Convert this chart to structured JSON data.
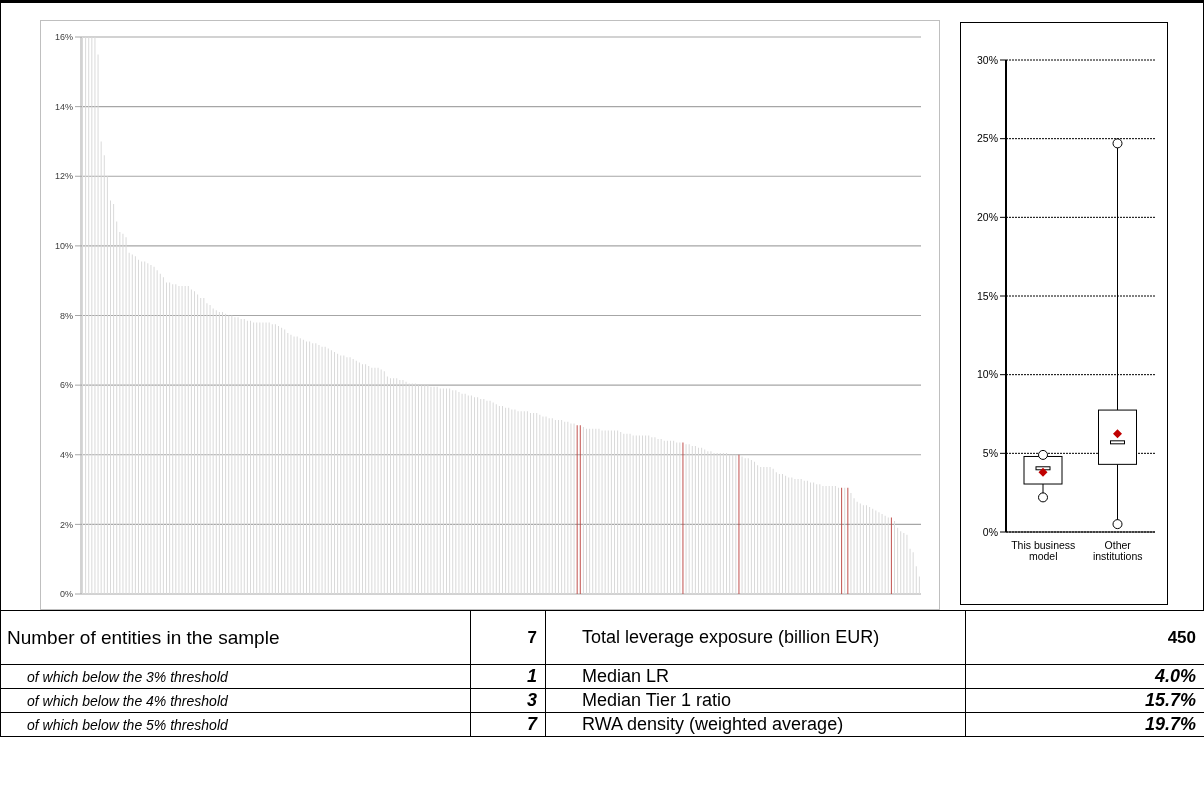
{
  "chart_data": [
    {
      "type": "bar",
      "categories": [
        null,
        null,
        null,
        null,
        null,
        null,
        null,
        null,
        null,
        null,
        null,
        null,
        null,
        null,
        null,
        null,
        null,
        null,
        null,
        null,
        null,
        null,
        null,
        null,
        null,
        null,
        null,
        null,
        null,
        null,
        null,
        null,
        null,
        null,
        null,
        null,
        null,
        null,
        null,
        null,
        null,
        null,
        null,
        null,
        null,
        null,
        null,
        null,
        null,
        null,
        null,
        null,
        null,
        null,
        null,
        null,
        null,
        null,
        null,
        null,
        null,
        null,
        null,
        null,
        null,
        null,
        null,
        null,
        null,
        null,
        null,
        null,
        null,
        null,
        null,
        null,
        null,
        null,
        null,
        null,
        null,
        null,
        null,
        null,
        null,
        null,
        null,
        null,
        null,
        null,
        null,
        null,
        null,
        null,
        null,
        null,
        null,
        null,
        null,
        null,
        null,
        null,
        null,
        null,
        null,
        null,
        null,
        null,
        null,
        null,
        null,
        null,
        null,
        null,
        null,
        null,
        null,
        null,
        null,
        null,
        null,
        null,
        null,
        null,
        null,
        null,
        null,
        null,
        null,
        null,
        null,
        null,
        null,
        null,
        null,
        null,
        null,
        null,
        null,
        null,
        null,
        null,
        null,
        null,
        null,
        null,
        null,
        null,
        null,
        null,
        null,
        null,
        null,
        null,
        null,
        null,
        null,
        null,
        null,
        null,
        null,
        null,
        null,
        null,
        null,
        null,
        null,
        null,
        null,
        null,
        null,
        null,
        null,
        null,
        null,
        null,
        null,
        null,
        null,
        null,
        null,
        null,
        null,
        null,
        null,
        null,
        null,
        null,
        null,
        null,
        null,
        null,
        null,
        null,
        null,
        null,
        null,
        null,
        null,
        null,
        null,
        null,
        null,
        null,
        null,
        null,
        null,
        null,
        null,
        null,
        null,
        null,
        null,
        null,
        null,
        null,
        null,
        null,
        null,
        null,
        null,
        null,
        null,
        null,
        null,
        null,
        null,
        null,
        null,
        null,
        null,
        null,
        null,
        null,
        null,
        null,
        null,
        null,
        null,
        null,
        null,
        null,
        null,
        null,
        null,
        null,
        null,
        null,
        null,
        null,
        null,
        null,
        null,
        null,
        null,
        null,
        null,
        null,
        null,
        null,
        null,
        null,
        null,
        null,
        null,
        null,
        null,
        null,
        null,
        null
      ],
      "values": [
        16,
        16,
        16,
        16,
        16,
        15.5,
        13.0,
        12.6,
        12.0,
        11.3,
        11.2,
        10.7,
        10.4,
        10.35,
        10.25,
        9.8,
        9.75,
        9.7,
        9.6,
        9.55,
        9.55,
        9.5,
        9.45,
        9.4,
        9.3,
        9.2,
        9.1,
        8.95,
        8.95,
        8.9,
        8.9,
        8.85,
        8.85,
        8.85,
        8.85,
        8.75,
        8.7,
        8.6,
        8.5,
        8.5,
        8.35,
        8.3,
        8.2,
        8.15,
        8.1,
        8.1,
        8.05,
        8.0,
        8.0,
        7.95,
        7.95,
        7.9,
        7.9,
        7.85,
        7.85,
        7.8,
        7.8,
        7.8,
        7.8,
        7.8,
        7.8,
        7.75,
        7.75,
        7.7,
        7.65,
        7.6,
        7.5,
        7.45,
        7.4,
        7.4,
        7.35,
        7.3,
        7.25,
        7.25,
        7.2,
        7.2,
        7.15,
        7.1,
        7.1,
        7.05,
        7.0,
        6.95,
        6.9,
        6.85,
        6.85,
        6.8,
        6.8,
        6.75,
        6.7,
        6.65,
        6.6,
        6.6,
        6.55,
        6.5,
        6.5,
        6.5,
        6.45,
        6.4,
        6.25,
        6.2,
        6.2,
        6.2,
        6.15,
        6.15,
        6.1,
        6.05,
        6.05,
        6.05,
        6.0,
        6.0,
        6.0,
        6.0,
        5.95,
        5.95,
        5.95,
        5.9,
        5.9,
        5.9,
        5.9,
        5.85,
        5.85,
        5.8,
        5.75,
        5.75,
        5.7,
        5.7,
        5.65,
        5.65,
        5.6,
        5.6,
        5.55,
        5.55,
        5.5,
        5.45,
        5.4,
        5.4,
        5.35,
        5.35,
        5.3,
        5.3,
        5.25,
        5.25,
        5.25,
        5.25,
        5.2,
        5.2,
        5.2,
        5.15,
        5.1,
        5.1,
        5.05,
        5.05,
        5.0,
        5.0,
        5.0,
        4.95,
        4.95,
        4.9,
        4.9,
        4.85,
        4.85,
        4.8,
        4.75,
        4.75,
        4.75,
        4.75,
        4.75,
        4.7,
        4.7,
        4.7,
        4.7,
        4.7,
        4.7,
        4.65,
        4.6,
        4.6,
        4.6,
        4.55,
        4.55,
        4.55,
        4.55,
        4.55,
        4.55,
        4.5,
        4.5,
        4.45,
        4.45,
        4.4,
        4.4,
        4.4,
        4.4,
        4.35,
        4.35,
        4.35,
        4.3,
        4.3,
        4.25,
        4.25,
        4.2,
        4.2,
        4.15,
        4.1,
        4.1,
        4.05,
        4.05,
        4.05,
        4.05,
        4.05,
        4.0,
        4.0,
        4.0,
        4.0,
        3.95,
        3.9,
        3.9,
        3.85,
        3.8,
        3.7,
        3.65,
        3.65,
        3.65,
        3.65,
        3.6,
        3.5,
        3.45,
        3.45,
        3.4,
        3.35,
        3.35,
        3.3,
        3.3,
        3.3,
        3.25,
        3.25,
        3.2,
        3.2,
        3.15,
        3.15,
        3.1,
        3.1,
        3.1,
        3.1,
        3.1,
        3.05,
        3.05,
        3.05,
        3.05,
        2.9,
        2.75,
        2.65,
        2.6,
        2.55,
        2.55,
        2.5,
        2.45,
        2.4,
        2.35,
        2.3,
        2.25,
        2.2,
        2.2,
        2.1,
        1.9,
        1.8,
        1.75,
        1.7,
        1.3,
        1.2,
        0.8,
        0.5
      ],
      "colors": [
        "#d9d9d9",
        "#d9d9d9",
        "#d9d9d9",
        "#d9d9d9",
        "#d9d9d9",
        "#d9d9d9",
        "#d9d9d9",
        "#d9d9d9",
        "#d9d9d9",
        "#d9d9d9",
        "#d9d9d9",
        "#d9d9d9",
        "#d9d9d9",
        "#d9d9d9",
        "#d9d9d9",
        "#d9d9d9",
        "#d9d9d9",
        "#d9d9d9",
        "#d9d9d9",
        "#d9d9d9",
        "#d9d9d9",
        "#d9d9d9",
        "#d9d9d9",
        "#d9d9d9",
        "#d9d9d9",
        "#d9d9d9",
        "#d9d9d9",
        "#d9d9d9",
        "#d9d9d9",
        "#d9d9d9",
        "#d9d9d9",
        "#d9d9d9",
        "#d9d9d9",
        "#d9d9d9",
        "#d9d9d9",
        "#d9d9d9",
        "#d9d9d9",
        "#d9d9d9",
        "#d9d9d9",
        "#d9d9d9",
        "#d9d9d9",
        "#d9d9d9",
        "#d9d9d9",
        "#d9d9d9",
        "#d9d9d9",
        "#d9d9d9",
        "#d9d9d9",
        "#d9d9d9",
        "#d9d9d9",
        "#d9d9d9",
        "#d9d9d9",
        "#d9d9d9",
        "#d9d9d9",
        "#d9d9d9",
        "#d9d9d9",
        "#d9d9d9",
        "#d9d9d9",
        "#d9d9d9",
        "#d9d9d9",
        "#d9d9d9",
        "#d9d9d9",
        "#d9d9d9",
        "#d9d9d9",
        "#d9d9d9",
        "#d9d9d9",
        "#d9d9d9",
        "#d9d9d9",
        "#d9d9d9",
        "#d9d9d9",
        "#d9d9d9",
        "#d9d9d9",
        "#d9d9d9",
        "#d9d9d9",
        "#d9d9d9",
        "#d9d9d9",
        "#d9d9d9",
        "#d9d9d9",
        "#d9d9d9",
        "#d9d9d9",
        "#d9d9d9",
        "#d9d9d9",
        "#d9d9d9",
        "#d9d9d9",
        "#d9d9d9",
        "#d9d9d9",
        "#d9d9d9",
        "#d9d9d9",
        "#d9d9d9",
        "#d9d9d9",
        "#d9d9d9",
        "#d9d9d9",
        "#d9d9d9",
        "#d9d9d9",
        "#d9d9d9",
        "#d9d9d9",
        "#d9d9d9",
        "#d9d9d9",
        "#d9d9d9",
        "#d9d9d9",
        "#d9d9d9",
        "#d9d9d9",
        "#d9d9d9",
        "#d9d9d9",
        "#d9d9d9",
        "#d9d9d9",
        "#d9d9d9",
        "#d9d9d9",
        "#d9d9d9",
        "#d9d9d9",
        "#d9d9d9",
        "#d9d9d9",
        "#d9d9d9",
        "#d9d9d9",
        "#d9d9d9",
        "#d9d9d9",
        "#d9d9d9",
        "#d9d9d9",
        "#d9d9d9",
        "#d9d9d9",
        "#d9d9d9",
        "#d9d9d9",
        "#d9d9d9",
        "#d9d9d9",
        "#d9d9d9",
        "#d9d9d9",
        "#d9d9d9",
        "#d9d9d9",
        "#d9d9d9",
        "#d9d9d9",
        "#d9d9d9",
        "#d9d9d9",
        "#d9d9d9",
        "#d9d9d9",
        "#d9d9d9",
        "#d9d9d9",
        "#d9d9d9",
        "#d9d9d9",
        "#d9d9d9",
        "#d9d9d9",
        "#d9d9d9",
        "#d9d9d9",
        "#d9d9d9",
        "#d9d9d9",
        "#d9d9d9",
        "#d9d9d9",
        "#d9d9d9",
        "#d9d9d9",
        "#d9d9d9",
        "#d9d9d9",
        "#d9d9d9",
        "#d9d9d9",
        "#d9d9d9",
        "#d9d9d9",
        "#d9d9d9",
        "#d9d9d9",
        "#d9d9d9",
        "#d9d9d9",
        "#d9d9d9",
        "#d9d9d9",
        "#c0504d",
        "#c0504d",
        "#d9d9d9",
        "#d9d9d9",
        "#d9d9d9",
        "#d9d9d9",
        "#d9d9d9",
        "#d9d9d9",
        "#d9d9d9",
        "#d9d9d9",
        "#d9d9d9",
        "#d9d9d9",
        "#d9d9d9",
        "#d9d9d9",
        "#d9d9d9",
        "#d9d9d9",
        "#d9d9d9",
        "#d9d9d9",
        "#d9d9d9",
        "#d9d9d9",
        "#d9d9d9",
        "#d9d9d9",
        "#d9d9d9",
        "#d9d9d9",
        "#d9d9d9",
        "#d9d9d9",
        "#d9d9d9",
        "#d9d9d9",
        "#d9d9d9",
        "#d9d9d9",
        "#d9d9d9",
        "#d9d9d9",
        "#d9d9d9",
        "#d9d9d9",
        "#c0504d",
        "#d9d9d9",
        "#d9d9d9",
        "#d9d9d9",
        "#d9d9d9",
        "#d9d9d9",
        "#d9d9d9",
        "#d9d9d9",
        "#d9d9d9",
        "#d9d9d9",
        "#d9d9d9",
        "#d9d9d9",
        "#d9d9d9",
        "#d9d9d9",
        "#d9d9d9",
        "#d9d9d9",
        "#d9d9d9",
        "#d9d9d9",
        "#c0504d",
        "#d9d9d9",
        "#d9d9d9",
        "#d9d9d9",
        "#d9d9d9",
        "#d9d9d9",
        "#d9d9d9",
        "#d9d9d9",
        "#d9d9d9",
        "#d9d9d9",
        "#d9d9d9",
        "#d9d9d9",
        "#d9d9d9",
        "#d9d9d9",
        "#d9d9d9",
        "#d9d9d9",
        "#d9d9d9",
        "#d9d9d9",
        "#d9d9d9",
        "#d9d9d9",
        "#d9d9d9",
        "#d9d9d9",
        "#d9d9d9",
        "#d9d9d9",
        "#d9d9d9",
        "#d9d9d9",
        "#d9d9d9",
        "#d9d9d9",
        "#d9d9d9",
        "#d9d9d9",
        "#d9d9d9",
        "#d9d9d9",
        "#d9d9d9",
        "#c0504d",
        "#d9d9d9",
        "#c0504d",
        "#d9d9d9",
        "#d9d9d9",
        "#d9d9d9",
        "#d9d9d9",
        "#d9d9d9",
        "#d9d9d9",
        "#d9d9d9",
        "#d9d9d9",
        "#d9d9d9",
        "#d9d9d9",
        "#d9d9d9",
        "#d9d9d9",
        "#d9d9d9",
        "#c0504d",
        "#d9d9d9",
        "#d9d9d9",
        "#d9d9d9",
        "#d9d9d9",
        "#d9d9d9",
        "#d9d9d9",
        "#d9d9d9",
        "#d9d9d9",
        "#d9d9d9"
      ],
      "ylim": [
        0,
        16
      ],
      "yticks": [
        {
          "value": 0,
          "label": "0%"
        },
        {
          "value": 2,
          "label": "2%"
        },
        {
          "value": 4,
          "label": "4%"
        },
        {
          "value": 6,
          "label": "6%"
        },
        {
          "value": 8,
          "label": "8%"
        },
        {
          "value": 10,
          "label": "10%"
        },
        {
          "value": 12,
          "label": "12%"
        },
        {
          "value": 14,
          "label": "14%"
        },
        {
          "value": 16,
          "label": "16%"
        }
      ],
      "grid": "y"
    },
    {
      "type": "box",
      "categories": [
        "This business model",
        "Other institutions"
      ],
      "boxes": [
        {
          "low": 2.2,
          "q1": 3.05,
          "median": 4.05,
          "q3": 4.8,
          "high": 4.9,
          "mean": 3.8,
          "outliers": [
            2.2,
            4.9
          ]
        },
        {
          "low": 0.5,
          "q1": 4.3,
          "median": 5.7,
          "q3": 7.75,
          "high": 24.7,
          "mean": 6.25,
          "outliers": [
            0.5,
            24.7
          ]
        }
      ],
      "ylim": [
        0,
        30
      ],
      "yticks": [
        {
          "value": 0,
          "label": "0%"
        },
        {
          "value": 5,
          "label": "5%"
        },
        {
          "value": 10,
          "label": "10%"
        },
        {
          "value": 15,
          "label": "15%"
        },
        {
          "value": 20,
          "label": "20%"
        },
        {
          "value": 25,
          "label": "25%"
        },
        {
          "value": 30,
          "label": "30%"
        }
      ],
      "grid": "y"
    },
    {
      "type": "other",
      "annotations": [
        "Number of entities in the sample",
        "7",
        "Total leverage exposure (billion EUR)",
        "450",
        "of which below the 3% threshold",
        "1",
        "Median LR",
        "4.0%",
        "of which below the 4% threshold",
        "3",
        "Median Tier 1 ratio",
        "15.7%",
        "of which below the 5% threshold",
        "7",
        "RWA density (weighted average)",
        "19.7%"
      ]
    }
  ]
}
